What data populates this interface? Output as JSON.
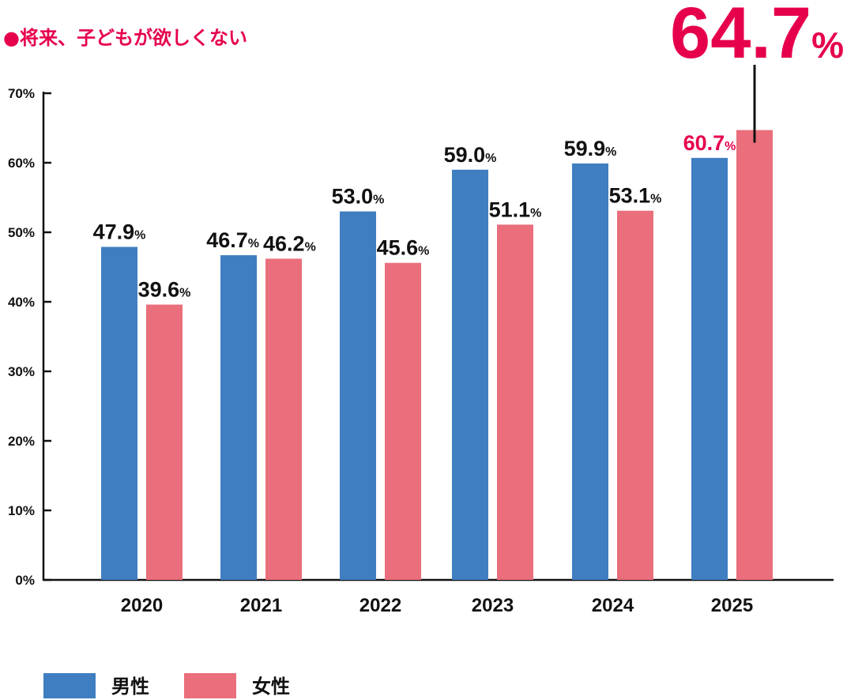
{
  "chart_data": {
    "type": "bar",
    "title": "●将来、子どもが欲しくない",
    "categories": [
      "2020",
      "2021",
      "2022",
      "2023",
      "2024",
      "2025"
    ],
    "series": [
      {
        "name": "男性",
        "color": "#3F7EC1",
        "values": [
          47.9,
          46.7,
          53.0,
          59.0,
          59.9,
          60.7
        ]
      },
      {
        "name": "女性",
        "color": "#EA6E7B",
        "values": [
          39.6,
          46.2,
          45.6,
          51.1,
          53.1,
          64.7
        ]
      }
    ],
    "ylim": [
      0,
      70
    ],
    "yticks": [
      "0%",
      "10%",
      "20%",
      "30%",
      "40%",
      "50%",
      "60%",
      "70%"
    ],
    "xlabel": "",
    "ylabel": "",
    "grid": false,
    "legend": "bottom-left",
    "highlight": {
      "category": "2025",
      "label": "64.7",
      "unit": "%",
      "color": "#E6004C"
    },
    "accent_color": "#E6004C"
  }
}
